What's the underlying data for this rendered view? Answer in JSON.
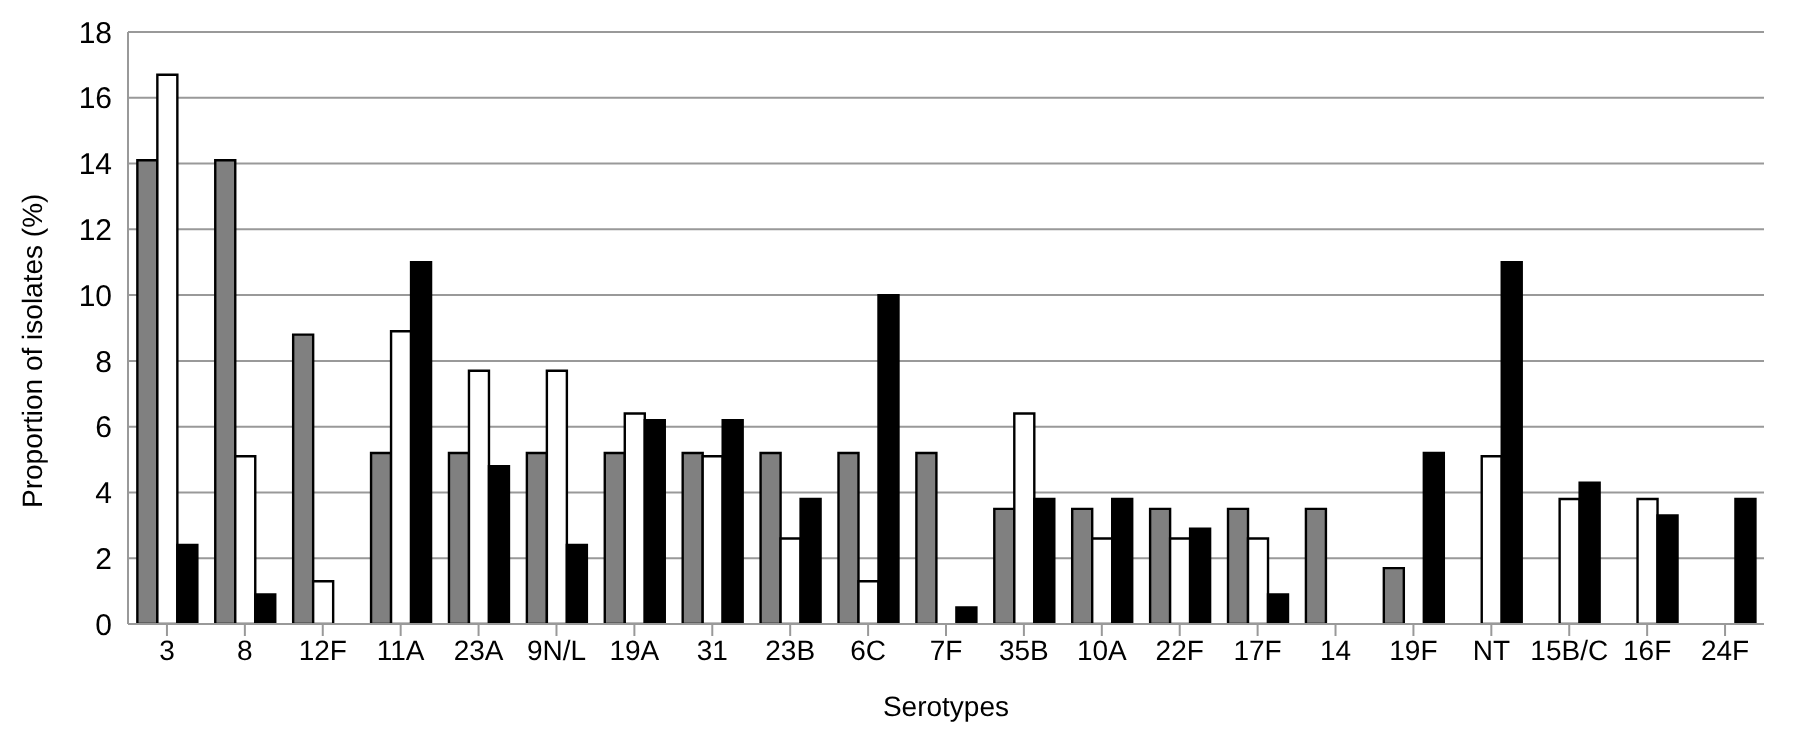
{
  "chart_data": {
    "type": "bar",
    "xlabel": "Serotypes",
    "ylabel": "Proportion of isolates (%)",
    "categories": [
      "3",
      "8",
      "12F",
      "11A",
      "23A",
      "9N/L",
      "19A",
      "31",
      "23B",
      "6C",
      "7F",
      "35B",
      "10A",
      "22F",
      "17F",
      "14",
      "19F",
      "NT",
      "15B/C",
      "16F",
      "24F"
    ],
    "series": [
      {
        "color": "#808080",
        "values": [
          14.1,
          14.1,
          8.8,
          5.2,
          5.2,
          5.2,
          5.2,
          5.2,
          5.2,
          5.2,
          5.2,
          3.5,
          3.5,
          3.5,
          3.5,
          3.5,
          1.7,
          0,
          0,
          0,
          0
        ]
      },
      {
        "color": "#ffffff",
        "values": [
          16.7,
          5.1,
          1.3,
          8.9,
          7.7,
          7.7,
          6.4,
          5.1,
          2.6,
          1.3,
          0,
          6.4,
          2.6,
          2.6,
          2.6,
          0,
          0,
          5.1,
          3.8,
          3.8,
          0
        ]
      },
      {
        "color": "#000000",
        "values": [
          2.4,
          0.9,
          0,
          11.0,
          4.8,
          2.4,
          6.2,
          6.2,
          3.8,
          10.0,
          0.5,
          3.8,
          3.8,
          2.9,
          0.9,
          0,
          5.2,
          11.0,
          4.3,
          3.3,
          3.8
        ]
      }
    ],
    "ylim": [
      0,
      18
    ],
    "yticks": [
      0,
      2,
      4,
      6,
      8,
      10,
      12,
      14,
      16,
      18
    ],
    "grid": "y",
    "legend": false
  }
}
